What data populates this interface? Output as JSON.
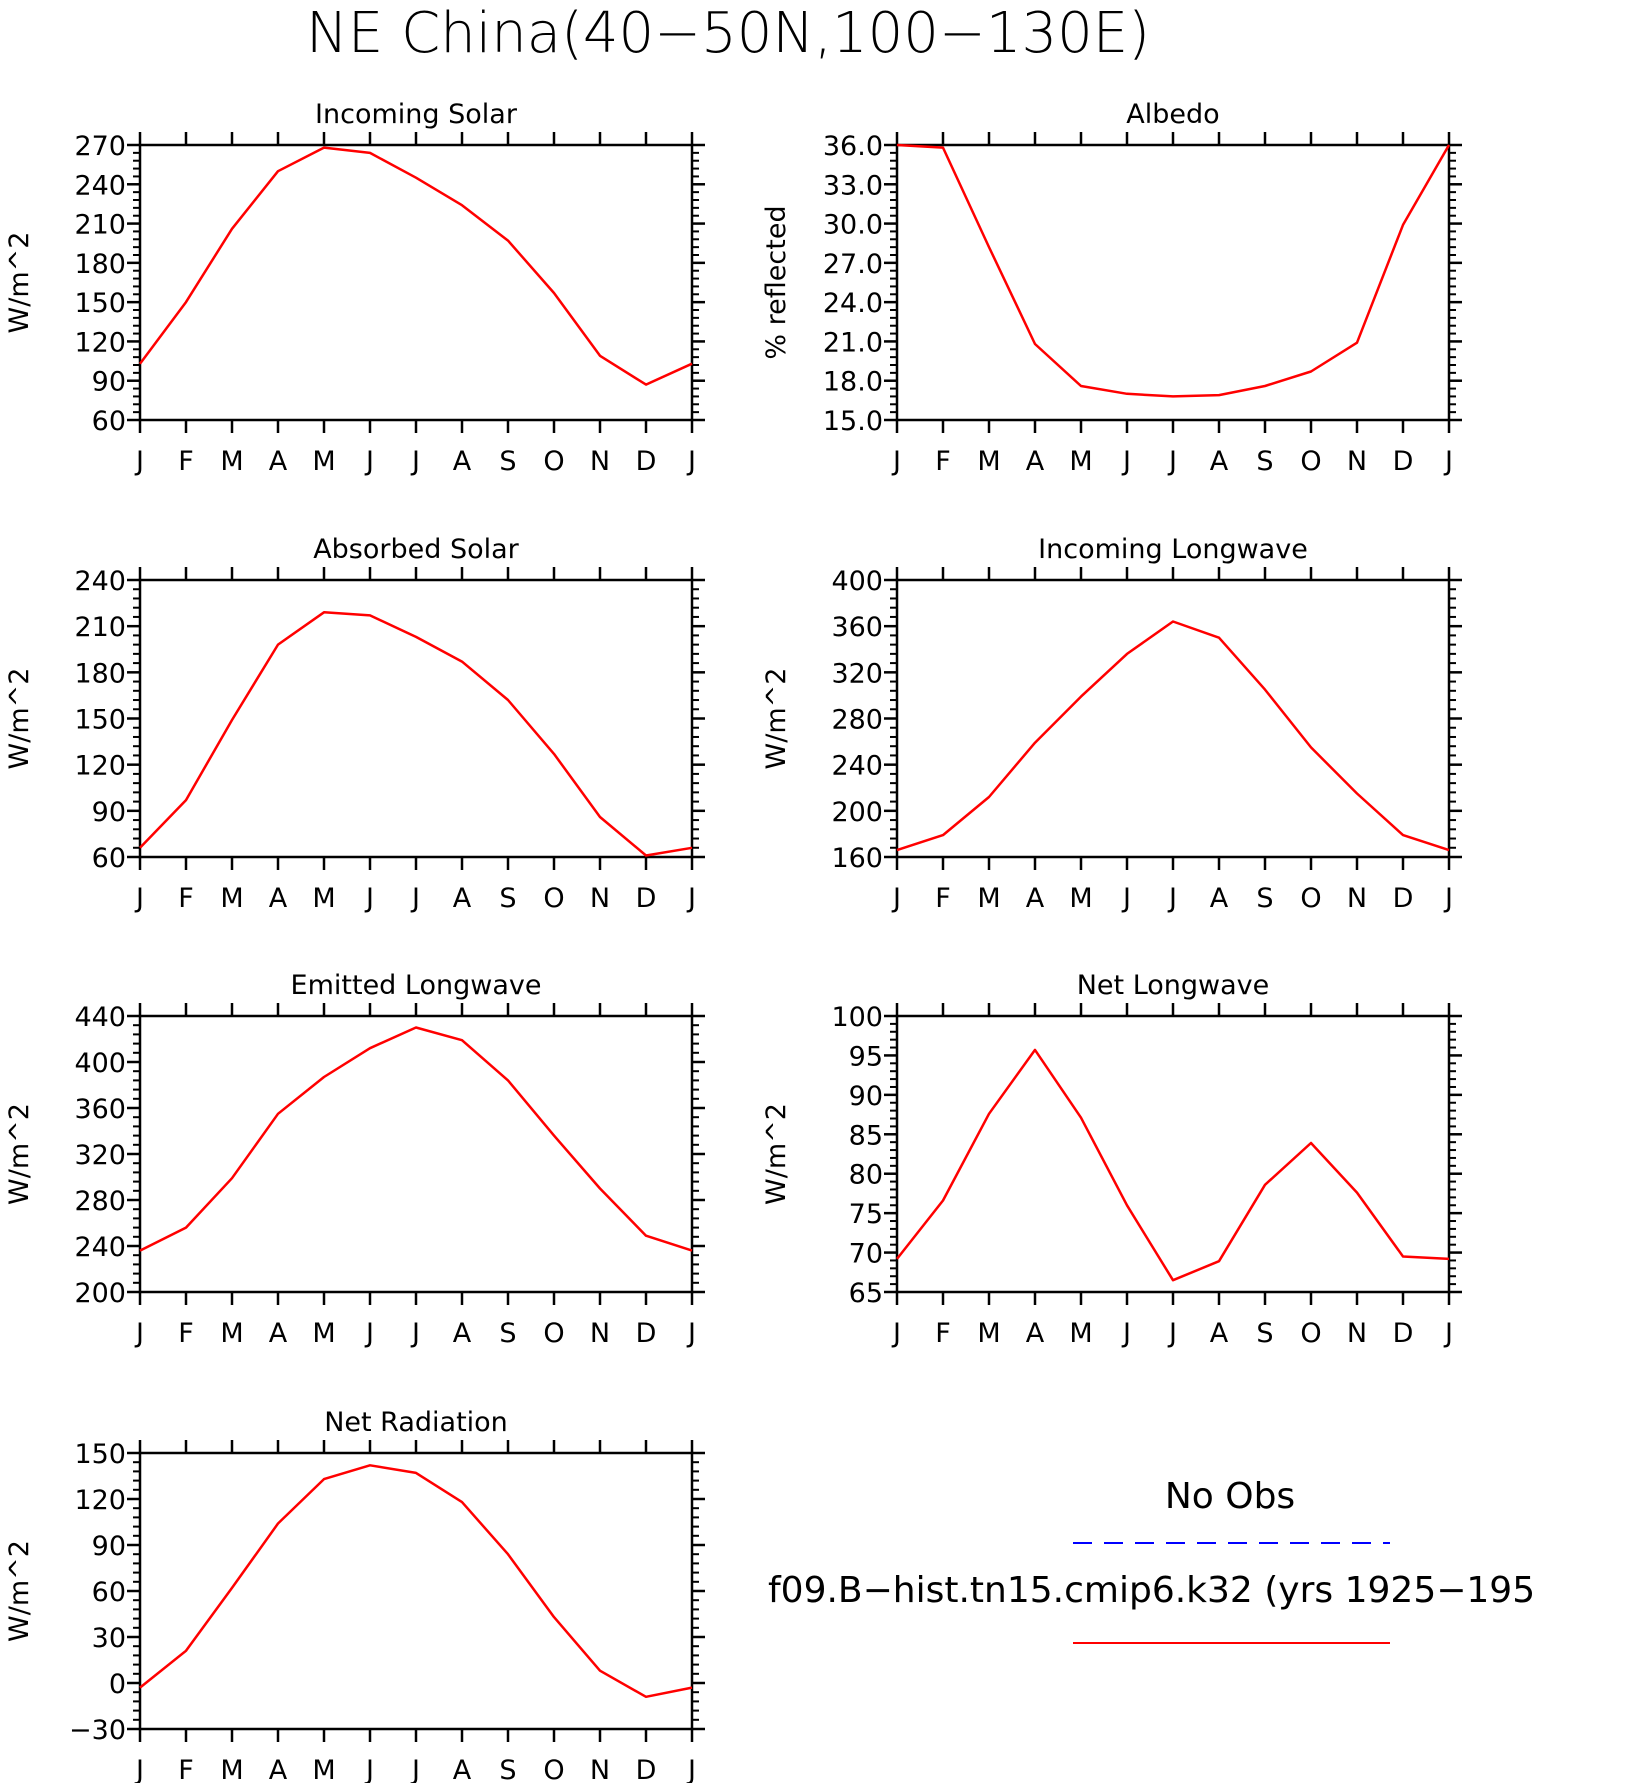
{
  "figure_title": "NE China(40−50N,100−130E)",
  "legend": {
    "items": [
      {
        "label": "No Obs",
        "color": "#0000ff",
        "style": "dashed"
      },
      {
        "label": "f09.B−hist.tn15.cmip6.k32 (yrs 1925−195",
        "color": "#ff0000",
        "style": "solid"
      }
    ]
  },
  "chart_data": [
    {
      "type": "line",
      "title": "Incoming Solar",
      "ylabel": "W/m^2",
      "categories": [
        "J",
        "F",
        "M",
        "A",
        "M",
        "J",
        "J",
        "A",
        "S",
        "O",
        "N",
        "D",
        "J"
      ],
      "ylim": [
        60,
        270
      ],
      "yticks": [
        "60",
        "90",
        "120",
        "150",
        "180",
        "210",
        "240",
        "270"
      ],
      "grid": false,
      "series": [
        {
          "color": "#ff0000",
          "values": [
            103,
            150,
            206,
            250,
            268,
            264,
            245,
            224,
            197,
            157,
            109,
            87,
            103
          ]
        }
      ]
    },
    {
      "type": "line",
      "title": "Albedo",
      "ylabel": "% reflected",
      "categories": [
        "J",
        "F",
        "M",
        "A",
        "M",
        "J",
        "J",
        "A",
        "S",
        "O",
        "N",
        "D",
        "J"
      ],
      "ylim": [
        15.0,
        36.0
      ],
      "yticks": [
        "15.0",
        "18.0",
        "21.0",
        "24.0",
        "27.0",
        "30.0",
        "33.0",
        "36.0"
      ],
      "grid": false,
      "series": [
        {
          "color": "#ff0000",
          "values": [
            36.0,
            35.8,
            28.2,
            20.8,
            17.6,
            17.0,
            16.8,
            16.9,
            17.6,
            18.7,
            20.9,
            29.9,
            36.0
          ]
        }
      ]
    },
    {
      "type": "line",
      "title": "Absorbed Solar",
      "ylabel": "W/m^2",
      "categories": [
        "J",
        "F",
        "M",
        "A",
        "M",
        "J",
        "J",
        "A",
        "S",
        "O",
        "N",
        "D",
        "J"
      ],
      "ylim": [
        60,
        240
      ],
      "yticks": [
        "60",
        "90",
        "120",
        "150",
        "180",
        "210",
        "240"
      ],
      "grid": false,
      "series": [
        {
          "color": "#ff0000",
          "values": [
            66,
            97,
            149,
            198,
            219,
            217,
            203,
            187,
            162,
            127,
            86,
            61,
            66
          ]
        }
      ]
    },
    {
      "type": "line",
      "title": "Incoming Longwave",
      "ylabel": "W/m^2",
      "categories": [
        "J",
        "F",
        "M",
        "A",
        "M",
        "J",
        "J",
        "A",
        "S",
        "O",
        "N",
        "D",
        "J"
      ],
      "ylim": [
        160,
        400
      ],
      "yticks": [
        "160",
        "200",
        "240",
        "280",
        "320",
        "360",
        "400"
      ],
      "grid": false,
      "series": [
        {
          "color": "#ff0000",
          "values": [
            166,
            179,
            212,
            259,
            299,
            336,
            364,
            350,
            305,
            255,
            215,
            179,
            166
          ]
        }
      ]
    },
    {
      "type": "line",
      "title": "Emitted Longwave",
      "ylabel": "W/m^2",
      "categories": [
        "J",
        "F",
        "M",
        "A",
        "M",
        "J",
        "J",
        "A",
        "S",
        "O",
        "N",
        "D",
        "J"
      ],
      "ylim": [
        200,
        440
      ],
      "yticks": [
        "200",
        "240",
        "280",
        "320",
        "360",
        "400",
        "440"
      ],
      "grid": false,
      "series": [
        {
          "color": "#ff0000",
          "values": [
            236,
            256,
            299,
            355,
            387,
            412,
            430,
            419,
            384,
            336,
            290,
            249,
            236
          ]
        }
      ]
    },
    {
      "type": "line",
      "title": "Net Longwave",
      "ylabel": "W/m^2",
      "categories": [
        "J",
        "F",
        "M",
        "A",
        "M",
        "J",
        "J",
        "A",
        "S",
        "O",
        "N",
        "D",
        "J"
      ],
      "ylim": [
        65,
        100
      ],
      "yticks": [
        "65",
        "70",
        "75",
        "80",
        "85",
        "90",
        "95",
        "100"
      ],
      "grid": false,
      "series": [
        {
          "color": "#ff0000",
          "values": [
            69.2,
            76.6,
            87.6,
            95.7,
            87.1,
            76.0,
            66.5,
            68.9,
            78.6,
            83.9,
            77.6,
            69.5,
            69.2
          ]
        }
      ]
    },
    {
      "type": "line",
      "title": "Net Radiation",
      "ylabel": "W/m^2",
      "categories": [
        "J",
        "F",
        "M",
        "A",
        "M",
        "J",
        "J",
        "A",
        "S",
        "O",
        "N",
        "D",
        "J"
      ],
      "ylim": [
        -30,
        150
      ],
      "yticks": [
        "−30",
        "0",
        "30",
        "60",
        "90",
        "120",
        "150"
      ],
      "grid": false,
      "series": [
        {
          "color": "#ff0000",
          "values": [
            -3,
            21,
            62,
            104,
            133,
            142,
            137,
            118,
            84,
            43,
            8,
            -9,
            -3
          ]
        }
      ]
    }
  ]
}
